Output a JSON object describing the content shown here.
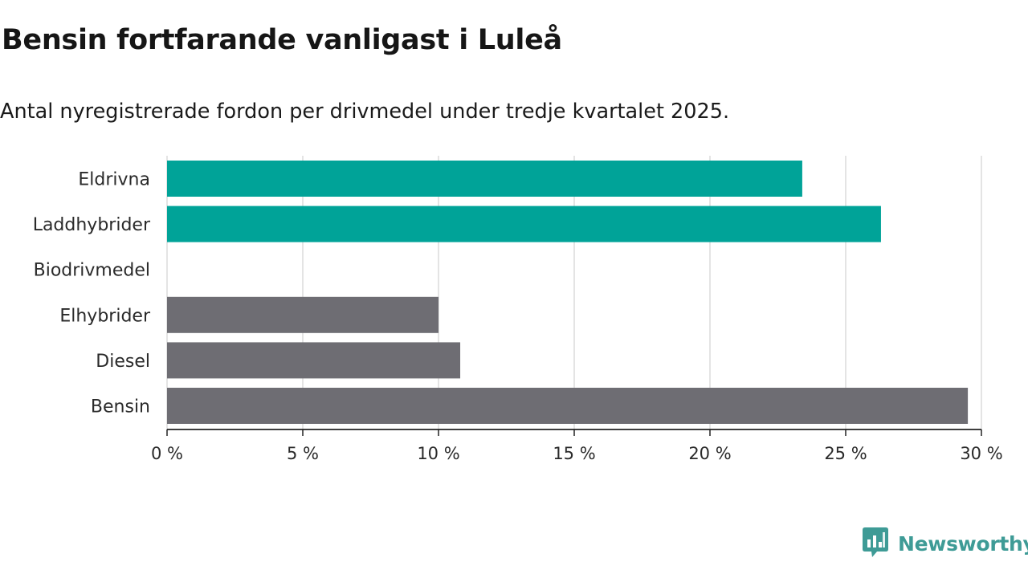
{
  "header": {
    "title": "Bensin fortfarande vanligast i Luleå",
    "subtitle": "Antal nyregistrerade fordon per drivmedel under tredje kvartalet 2025."
  },
  "chart_data": {
    "type": "bar",
    "orientation": "horizontal",
    "title": "Bensin fortfarande vanligast i Luleå",
    "subtitle": "Antal nyregistrerade fordon per drivmedel under tredje kvartalet 2025.",
    "categories": [
      "Eldrivna",
      "Laddhybrider",
      "Biodrivmedel",
      "Elhybrider",
      "Diesel",
      "Bensin"
    ],
    "values": [
      23.4,
      26.3,
      0,
      10.0,
      10.8,
      29.5
    ],
    "bar_colors": [
      "#00a398",
      "#00a398",
      "#00a398",
      "#6e6d73",
      "#6e6d73",
      "#6e6d73"
    ],
    "xlim": [
      0,
      30
    ],
    "x_ticks": [
      0,
      5,
      10,
      15,
      20,
      25,
      30
    ],
    "x_tick_labels": [
      "0 %",
      "5 %",
      "10 %",
      "15 %",
      "20 %",
      "25 %",
      "30 %"
    ],
    "xlabel": "",
    "ylabel": "",
    "grid": true,
    "unit": "%"
  },
  "brand": {
    "name": "Newsworthy",
    "color": "#3e9b96",
    "icon": "newsworthy-logo-icon"
  }
}
